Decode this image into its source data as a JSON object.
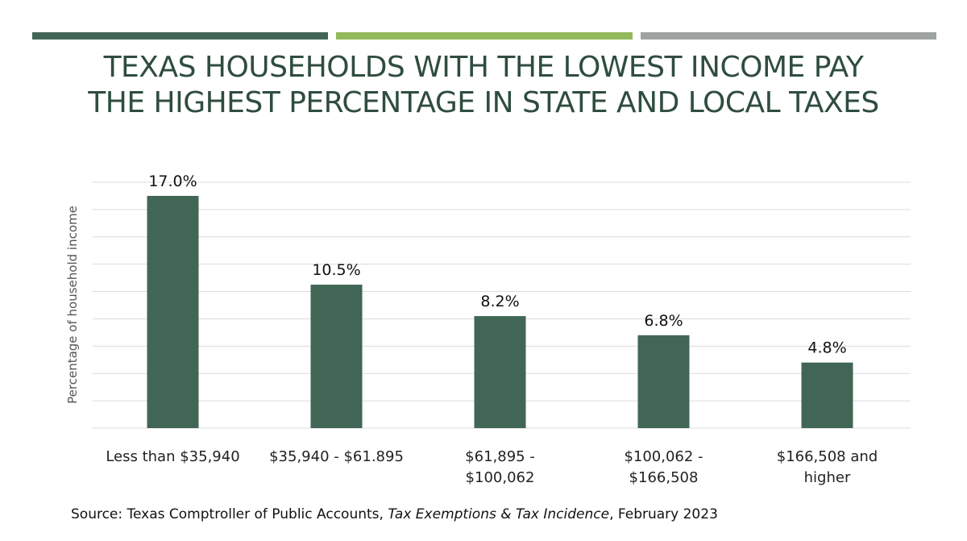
{
  "header": {
    "band_colors": [
      "#426656",
      "#94b95a",
      "#9ea3a1"
    ],
    "title_line1": "TEXAS HOUSEHOLDS WITH THE LOWEST INCOME PAY",
    "title_line2": "THE HIGHEST PERCENTAGE IN STATE AND LOCAL TAXES"
  },
  "chart_data": {
    "type": "bar",
    "title": "TEXAS HOUSEHOLDS WITH THE LOWEST INCOME PAY THE HIGHEST PERCENTAGE IN STATE AND LOCAL TAXES",
    "categories": [
      [
        "Less than $35,940"
      ],
      [
        "$35,940 - $61.895"
      ],
      [
        "$61,895 -",
        "$100,062"
      ],
      [
        "$100,062 -",
        "$166,508"
      ],
      [
        "$166,508 and",
        "higher"
      ]
    ],
    "values": [
      17.0,
      10.5,
      8.2,
      6.8,
      4.8
    ],
    "data_labels": [
      "17.0%",
      "10.5%",
      "8.2%",
      "6.8%",
      "4.8%"
    ],
    "xlabel": "",
    "ylabel": "Percentage of household income",
    "ylim": [
      0,
      18
    ],
    "grid_step": 2,
    "grid": true,
    "y_tick_labels_shown": false,
    "bar_color": "#426656"
  },
  "footer": {
    "source_prefix": "Source:  Texas Comptroller of Public Accounts, ",
    "source_italic": "Tax Exemptions & Tax Incidence",
    "source_suffix": ", February 2023"
  }
}
